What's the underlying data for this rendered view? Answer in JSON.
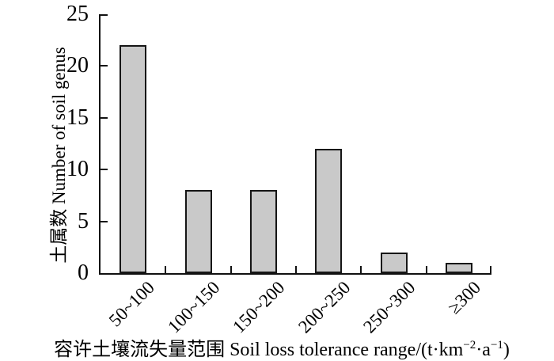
{
  "chart_data": {
    "type": "bar",
    "categories": [
      "50~100",
      "100~150",
      "150~200",
      "200~250",
      "250~300",
      "≥300"
    ],
    "values": [
      22,
      8,
      8,
      12,
      2,
      1
    ],
    "ylabel": "土属数 Number of soil genus",
    "xlabel": "容许土壤流失量范围 Soil loss tolerance range/(t·km⁻²·a⁻¹)",
    "xlabel_parts": {
      "pre": "容许土壤流失量范围 Soil loss tolerance range/(t·km",
      "sup1": "−2",
      "mid": "·a",
      "sup2": "−1",
      "close": ")"
    },
    "yticks": [
      0,
      5,
      10,
      15,
      20,
      25
    ],
    "ylim": [
      0,
      25
    ],
    "grid": false,
    "legend": null,
    "colors": {
      "bar_fill": "#c9c9c9",
      "bar_border": "#161616",
      "axis": "#111111",
      "text": "#000000",
      "background": "#ffffff"
    }
  }
}
